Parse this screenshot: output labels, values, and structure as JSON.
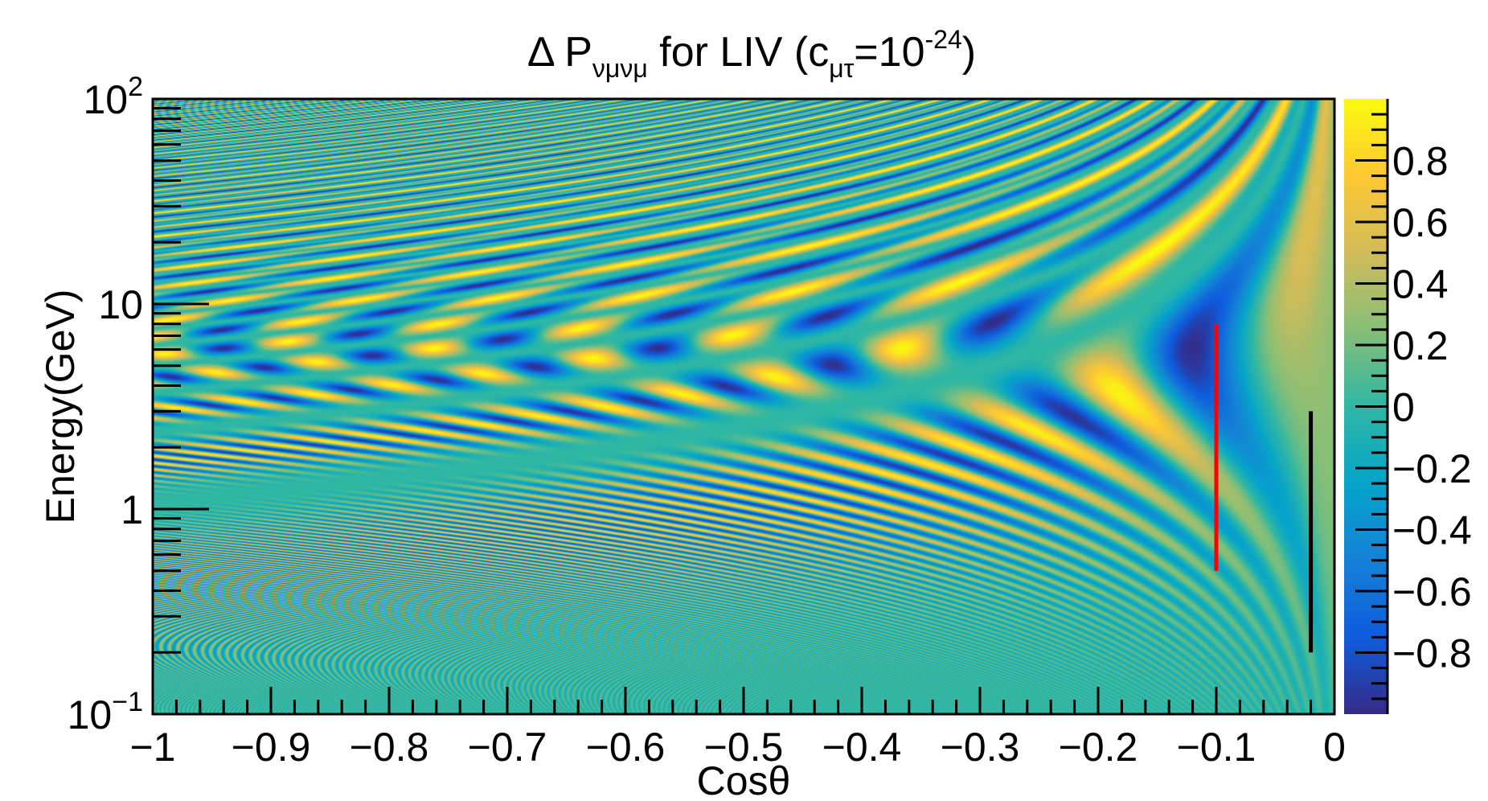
{
  "chart_data": {
    "type": "heatmap",
    "title": {
      "prefix": "Δ P",
      "subscript": "νμνμ",
      "middle": " for LIV (c",
      "middle_subscript": "μτ",
      "suffix": "=10",
      "superscript": "-24",
      "close": ")"
    },
    "xlabel": "Cosθ",
    "ylabel": "Energy(GeV)",
    "xlim": [
      -1,
      0
    ],
    "ylim": [
      0.1,
      100
    ],
    "y_scale": "log",
    "x_ticks": [
      {
        "value": -1,
        "label": "−1"
      },
      {
        "value": -0.9,
        "label": "−0.9"
      },
      {
        "value": -0.8,
        "label": "−0.8"
      },
      {
        "value": -0.7,
        "label": "−0.7"
      },
      {
        "value": -0.6,
        "label": "−0.6"
      },
      {
        "value": -0.5,
        "label": "−0.5"
      },
      {
        "value": -0.4,
        "label": "−0.4"
      },
      {
        "value": -0.3,
        "label": "−0.3"
      },
      {
        "value": -0.2,
        "label": "−0.2"
      },
      {
        "value": -0.1,
        "label": "−0.1"
      },
      {
        "value": 0,
        "label": "0"
      }
    ],
    "y_ticks": [
      {
        "value": 0.1,
        "base": "10",
        "exp": "−1"
      },
      {
        "value": 1,
        "label": "1"
      },
      {
        "value": 10,
        "label": "10"
      },
      {
        "value": 100,
        "base": "10",
        "exp": "2"
      }
    ],
    "colorbar": {
      "range": [
        -1,
        1
      ],
      "ticks": [
        {
          "value": 0.8,
          "label": "0.8"
        },
        {
          "value": 0.6,
          "label": "0.6"
        },
        {
          "value": 0.4,
          "label": "0.4"
        },
        {
          "value": 0.2,
          "label": "0.2"
        },
        {
          "value": 0,
          "label": "0"
        },
        {
          "value": -0.2,
          "label": "−0.2"
        },
        {
          "value": -0.4,
          "label": "−0.4"
        },
        {
          "value": -0.6,
          "label": "−0.6"
        },
        {
          "value": -0.8,
          "label": "−0.8"
        }
      ],
      "colors": [
        "#352a87",
        "#0f5cdd",
        "#1481d6",
        "#06a4ca",
        "#2eb7a4",
        "#87bf77",
        "#d1bb59",
        "#fec832",
        "#f9fb0e"
      ]
    },
    "markers": [
      {
        "x": -0.1,
        "y_from": 0.5,
        "y_to": 8,
        "color": "#ff0000"
      },
      {
        "x": -0.02,
        "y_from": 0.2,
        "y_to": 3,
        "color": "#000000"
      }
    ],
    "grid": false
  }
}
